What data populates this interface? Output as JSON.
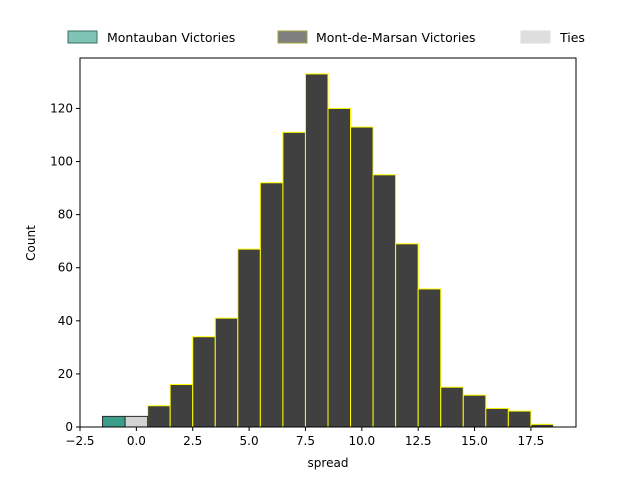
{
  "chart_data": {
    "type": "bar",
    "xlabel": "spread",
    "ylabel": "Count",
    "xlim": [
      -2.5,
      19.5
    ],
    "ylim": [
      0,
      139
    ],
    "xticks": [
      -2.5,
      0.0,
      2.5,
      5.0,
      7.5,
      10.0,
      12.5,
      15.0,
      17.5
    ],
    "xtick_labels": [
      "−2.5",
      "0.0",
      "2.5",
      "5.0",
      "7.5",
      "10.0",
      "12.5",
      "15.0",
      "17.5"
    ],
    "yticks": [
      0,
      20,
      40,
      60,
      80,
      100,
      120
    ],
    "yticks_labels": [
      "0",
      "20",
      "40",
      "60",
      "80",
      "100",
      "120"
    ],
    "grid": false,
    "legend_position": "top",
    "series": [
      {
        "name": "Montauban Victories",
        "face_color": "#3a9e8a",
        "edge_color": "#2a2a2a",
        "bins": [
          {
            "x0": -1.5,
            "x1": -0.5,
            "count": 4
          }
        ]
      },
      {
        "name": "Mont-de-Marsan Victories",
        "face_color": "#404040",
        "edge_color": "#ffff00",
        "bins": [
          {
            "x0": 0.5,
            "x1": 1.5,
            "count": 8
          },
          {
            "x0": 1.5,
            "x1": 2.5,
            "count": 16
          },
          {
            "x0": 2.5,
            "x1": 3.5,
            "count": 34
          },
          {
            "x0": 3.5,
            "x1": 4.5,
            "count": 41
          },
          {
            "x0": 4.5,
            "x1": 5.5,
            "count": 67
          },
          {
            "x0": 5.5,
            "x1": 6.5,
            "count": 92
          },
          {
            "x0": 6.5,
            "x1": 7.5,
            "count": 111
          },
          {
            "x0": 7.5,
            "x1": 8.5,
            "count": 133
          },
          {
            "x0": 8.5,
            "x1": 9.5,
            "count": 120
          },
          {
            "x0": 9.5,
            "x1": 10.5,
            "count": 113
          },
          {
            "x0": 10.5,
            "x1": 11.5,
            "count": 95
          },
          {
            "x0": 11.5,
            "x1": 12.5,
            "count": 69
          },
          {
            "x0": 12.5,
            "x1": 13.5,
            "count": 52
          },
          {
            "x0": 13.5,
            "x1": 14.5,
            "count": 15
          },
          {
            "x0": 14.5,
            "x1": 15.5,
            "count": 12
          },
          {
            "x0": 15.5,
            "x1": 16.5,
            "count": 7
          },
          {
            "x0": 16.5,
            "x1": 17.5,
            "count": 6
          },
          {
            "x0": 17.5,
            "x1": 18.5,
            "count": 1
          }
        ]
      },
      {
        "name": "Ties",
        "face_color": "#d3d3d3",
        "edge_color": "#2a2a2a",
        "bins": [
          {
            "x0": -0.5,
            "x1": 0.5,
            "count": 4
          }
        ]
      }
    ],
    "legend": [
      {
        "label": "Montauban Victories",
        "face": "#7fc4b6",
        "edge": "#3a6e64"
      },
      {
        "label": "Mont-de-Marsan Victories",
        "face": "#7f7f7f",
        "edge": "#a0a040"
      },
      {
        "label": "Ties",
        "face": "#dedede",
        "edge": "#dedede"
      }
    ]
  }
}
